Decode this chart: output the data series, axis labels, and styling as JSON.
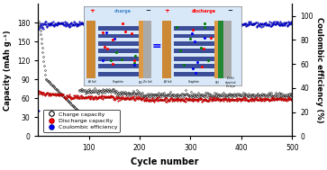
{
  "title": "",
  "xlabel": "Cycle number",
  "ylabel_left": "Capacity (mAh g⁻¹)",
  "ylabel_right": "Coulombic efficiency (%)",
  "xlim": [
    0,
    500
  ],
  "ylim_left": [
    0,
    210
  ],
  "ylim_right": [
    0,
    110
  ],
  "yticks_left": [
    0,
    30,
    60,
    90,
    120,
    150,
    180
  ],
  "yticks_right": [
    0,
    20,
    40,
    60,
    80,
    100
  ],
  "xticks": [
    100,
    200,
    300,
    400,
    500
  ],
  "charge_color": "black",
  "discharge_color": "red",
  "ce_color": "blue",
  "legend_labels": [
    "Charge capacity",
    "Discharge capacity",
    "Coulombic efficiency"
  ],
  "background_color": "white",
  "inset_bg": "#d8e8f8",
  "inset_charge_label_color": "#4488cc",
  "inset_discharge_label_color": "red",
  "graphite_color": "#223388",
  "al_foil_color": "#cc8833",
  "zn_foil_color": "#aaaaaa",
  "sei_color": "#cc8833",
  "zn_deposited_color": "#228833"
}
